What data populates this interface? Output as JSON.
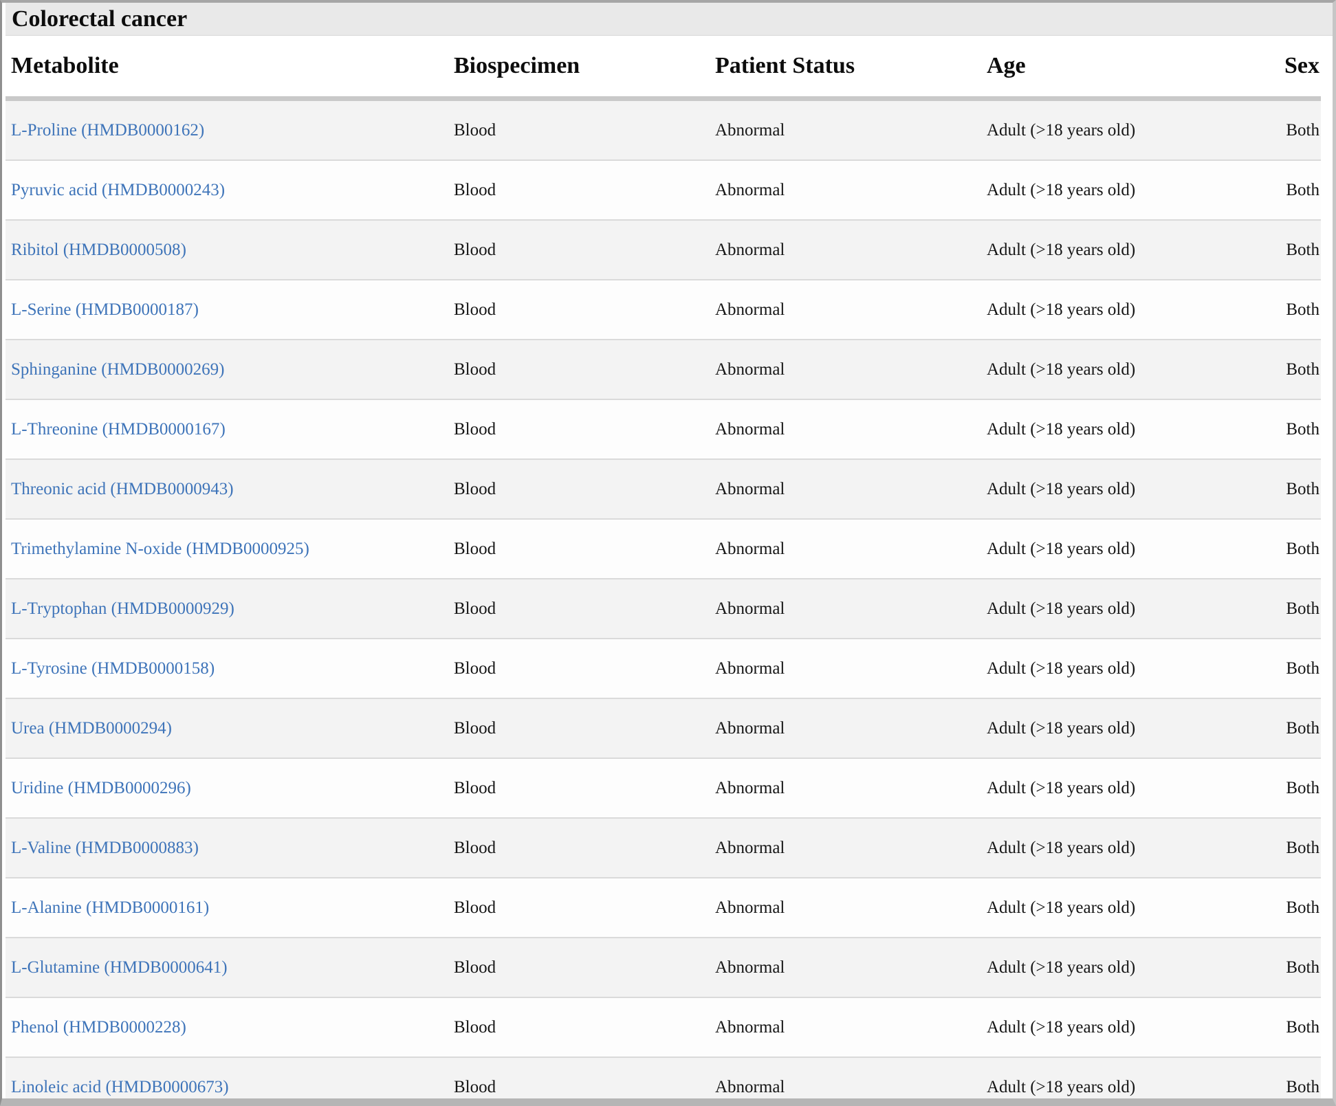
{
  "title": "Colorectal cancer",
  "columns": [
    "Metabolite",
    "Biospecimen",
    "Patient Status",
    "Age",
    "Sex"
  ],
  "punct": {
    "open_paren": " (",
    "close_paren": ")"
  },
  "rows": [
    {
      "metabolite": "L-Proline",
      "hmdb_id": "HMDB0000162",
      "biospecimen": "Blood",
      "patient_status": "Abnormal",
      "age": "Adult (>18 years old)",
      "sex": "Both"
    },
    {
      "metabolite": "Pyruvic acid",
      "hmdb_id": "HMDB0000243",
      "biospecimen": "Blood",
      "patient_status": "Abnormal",
      "age": "Adult (>18 years old)",
      "sex": "Both"
    },
    {
      "metabolite": "Ribitol",
      "hmdb_id": "HMDB0000508",
      "biospecimen": "Blood",
      "patient_status": "Abnormal",
      "age": "Adult (>18 years old)",
      "sex": "Both"
    },
    {
      "metabolite": "L-Serine",
      "hmdb_id": "HMDB0000187",
      "biospecimen": "Blood",
      "patient_status": "Abnormal",
      "age": "Adult (>18 years old)",
      "sex": "Both"
    },
    {
      "metabolite": "Sphinganine",
      "hmdb_id": "HMDB0000269",
      "biospecimen": "Blood",
      "patient_status": "Abnormal",
      "age": "Adult (>18 years old)",
      "sex": "Both"
    },
    {
      "metabolite": "L-Threonine",
      "hmdb_id": "HMDB0000167",
      "biospecimen": "Blood",
      "patient_status": "Abnormal",
      "age": "Adult (>18 years old)",
      "sex": "Both"
    },
    {
      "metabolite": "Threonic acid",
      "hmdb_id": "HMDB0000943",
      "biospecimen": "Blood",
      "patient_status": "Abnormal",
      "age": "Adult (>18 years old)",
      "sex": "Both"
    },
    {
      "metabolite": "Trimethylamine N-oxide",
      "hmdb_id": "HMDB0000925",
      "biospecimen": "Blood",
      "patient_status": "Abnormal",
      "age": "Adult (>18 years old)",
      "sex": "Both"
    },
    {
      "metabolite": "L-Tryptophan",
      "hmdb_id": "HMDB0000929",
      "biospecimen": "Blood",
      "patient_status": "Abnormal",
      "age": "Adult (>18 years old)",
      "sex": "Both"
    },
    {
      "metabolite": "L-Tyrosine",
      "hmdb_id": "HMDB0000158",
      "biospecimen": "Blood",
      "patient_status": "Abnormal",
      "age": "Adult (>18 years old)",
      "sex": "Both"
    },
    {
      "metabolite": "Urea",
      "hmdb_id": "HMDB0000294",
      "biospecimen": "Blood",
      "patient_status": "Abnormal",
      "age": "Adult (>18 years old)",
      "sex": "Both"
    },
    {
      "metabolite": "Uridine",
      "hmdb_id": "HMDB0000296",
      "biospecimen": "Blood",
      "patient_status": "Abnormal",
      "age": "Adult (>18 years old)",
      "sex": "Both"
    },
    {
      "metabolite": "L-Valine",
      "hmdb_id": "HMDB0000883",
      "biospecimen": "Blood",
      "patient_status": "Abnormal",
      "age": "Adult (>18 years old)",
      "sex": "Both"
    },
    {
      "metabolite": "L-Alanine",
      "hmdb_id": "HMDB0000161",
      "biospecimen": "Blood",
      "patient_status": "Abnormal",
      "age": "Adult (>18 years old)",
      "sex": "Both"
    },
    {
      "metabolite": "L-Glutamine",
      "hmdb_id": "HMDB0000641",
      "biospecimen": "Blood",
      "patient_status": "Abnormal",
      "age": "Adult (>18 years old)",
      "sex": "Both"
    },
    {
      "metabolite": "Phenol",
      "hmdb_id": "HMDB0000228",
      "biospecimen": "Blood",
      "patient_status": "Abnormal",
      "age": "Adult (>18 years old)",
      "sex": "Both"
    },
    {
      "metabolite": "Linoleic acid",
      "hmdb_id": "HMDB0000673",
      "biospecimen": "Blood",
      "patient_status": "Abnormal",
      "age": "Adult (>18 years old)",
      "sex": "Both"
    }
  ],
  "colors": {
    "link": "#3e74b9",
    "title_bar_bg": "#e9e9e9",
    "row_alt": "#f3f3f3",
    "header_text": "#0d0d0d",
    "body_text": "#151515",
    "frame_border": "#8f8f8f"
  }
}
